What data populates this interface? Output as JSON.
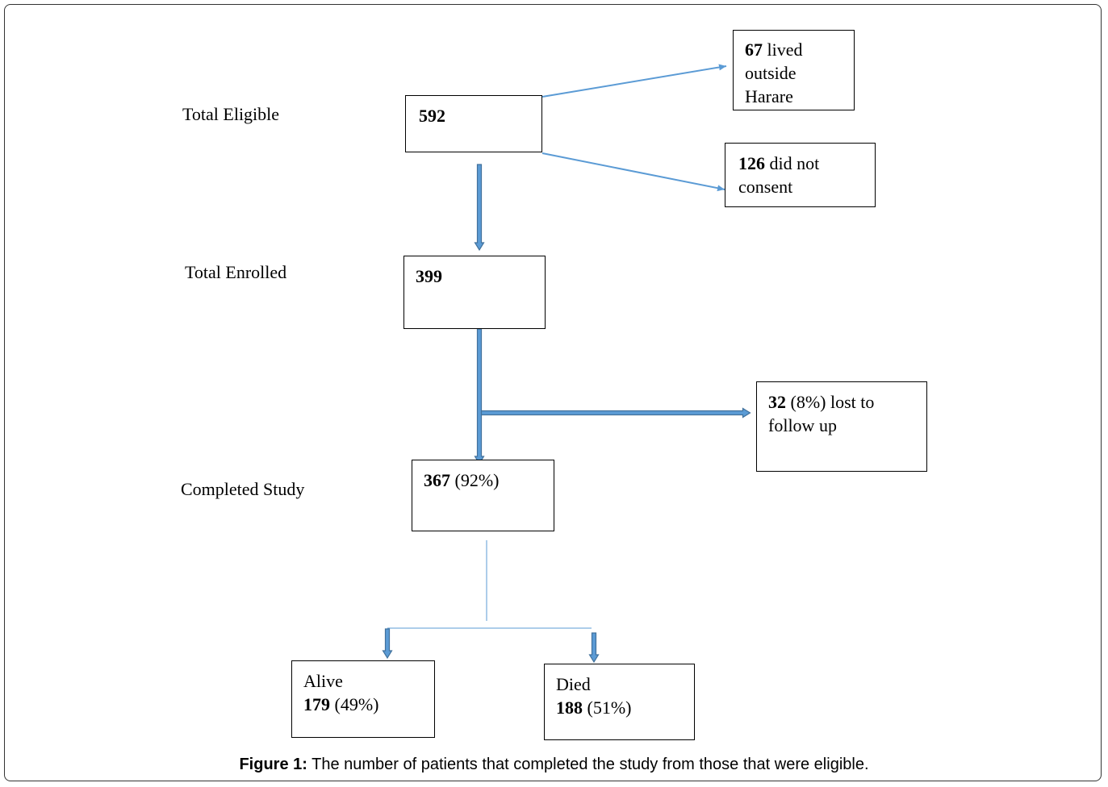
{
  "stages": {
    "eligible": "Total Eligible",
    "enrolled": "Total Enrolled",
    "completed": "Completed Study"
  },
  "nodes": {
    "eligible": {
      "count": 592
    },
    "outside": {
      "count": 67,
      "text": "lived outside Harare"
    },
    "no_consent": {
      "count": 126,
      "text": "did not consent"
    },
    "enrolled": {
      "count": 399
    },
    "lost": {
      "count": 32,
      "percent": "(8%)",
      "text": "lost to follow up"
    },
    "completed": {
      "count": 367,
      "percent": "(92%)"
    },
    "alive": {
      "label": "Alive",
      "count": 179,
      "percent": "(49%)"
    },
    "died": {
      "label": "Died",
      "count": 188,
      "percent": "(51%)"
    }
  },
  "caption": {
    "label": "Figure 1:",
    "text": "The number of patients that completed the study from those that were eligible."
  }
}
